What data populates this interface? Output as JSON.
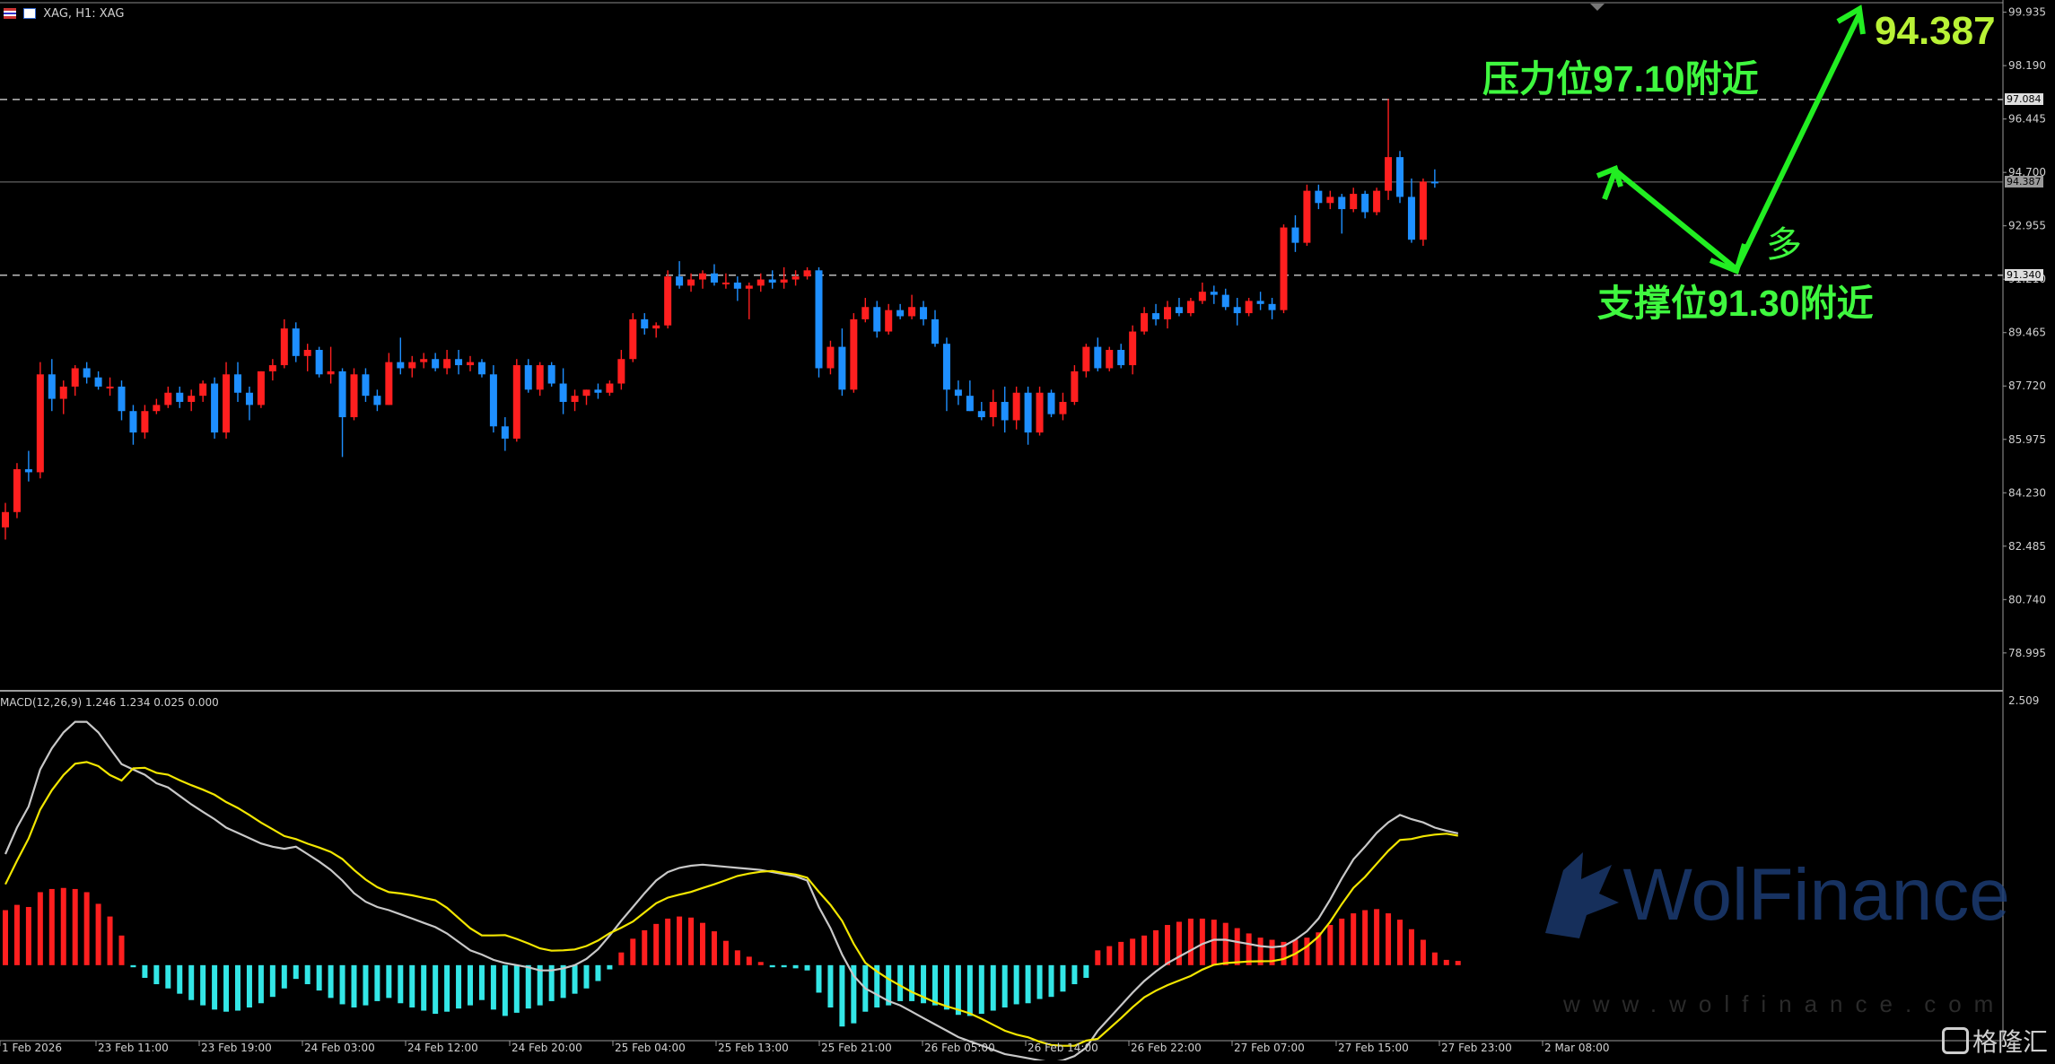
{
  "header": {
    "symbol_label": "XAG, H1: XAG"
  },
  "macd": {
    "label": "MACD(12,26,9) 1.246 1.234 0.025 0.000",
    "scale_top": "2.509"
  },
  "price_axis": {
    "ticks": [
      "99.935",
      "98.190",
      "96.445",
      "94.700",
      "92.955",
      "91.210",
      "89.465",
      "87.720",
      "85.975",
      "84.230",
      "82.485",
      "80.740",
      "78.995"
    ],
    "tags": {
      "resistance": "97.084",
      "current": "94.387",
      "support": "91.340"
    }
  },
  "time_axis": [
    "1 Feb 2026",
    "23 Feb 11:00",
    "23 Feb 19:00",
    "24 Feb 03:00",
    "24 Feb 12:00",
    "24 Feb 20:00",
    "25 Feb 04:00",
    "25 Feb 13:00",
    "25 Feb 21:00",
    "26 Feb 05:00",
    "26 Feb 14:00",
    "26 Feb 22:00",
    "27 Feb 07:00",
    "27 Feb 15:00",
    "27 Feb 23:00",
    "2 Mar 08:00"
  ],
  "annotations": {
    "resistance_prefix": "压力位",
    "resistance_value": "97.10",
    "resistance_suffix": "附近",
    "support_prefix": "支撑位",
    "support_value": "91.30",
    "support_suffix": "附近",
    "long_label": "多",
    "target_price": "94.387"
  },
  "watermark": {
    "brand": "WolFinance",
    "url": "www.wolfinance.com",
    "corner_logo": "格隆汇"
  },
  "colors": {
    "bull": "#ff1f1f",
    "bear": "#1e8fff",
    "hist_neg": "#33e6e6",
    "macd_line": "#c8c8c8",
    "signal_line": "#f2e600",
    "arrow": "#22ee22"
  },
  "chart_data": {
    "type": "candlestick",
    "candles": [
      [
        83.1,
        83.9,
        82.7,
        83.6
      ],
      [
        83.6,
        85.2,
        83.4,
        85.0
      ],
      [
        85.0,
        85.6,
        84.6,
        84.9
      ],
      [
        84.9,
        88.5,
        84.7,
        88.1
      ],
      [
        88.1,
        88.6,
        86.9,
        87.3
      ],
      [
        87.3,
        87.9,
        86.8,
        87.7
      ],
      [
        87.7,
        88.4,
        87.4,
        88.3
      ],
      [
        88.3,
        88.5,
        87.8,
        88.0
      ],
      [
        88.0,
        88.2,
        87.6,
        87.7
      ],
      [
        87.7,
        88.0,
        87.4,
        87.7
      ],
      [
        87.7,
        87.9,
        86.6,
        86.9
      ],
      [
        86.9,
        87.1,
        85.8,
        86.2
      ],
      [
        86.2,
        87.1,
        86.0,
        86.9
      ],
      [
        86.9,
        87.3,
        86.8,
        87.1
      ],
      [
        87.1,
        87.7,
        87.0,
        87.5
      ],
      [
        87.5,
        87.7,
        87.0,
        87.2
      ],
      [
        87.2,
        87.6,
        86.9,
        87.4
      ],
      [
        87.4,
        87.9,
        87.2,
        87.8
      ],
      [
        87.8,
        88.0,
        86.0,
        86.2
      ],
      [
        86.2,
        88.5,
        86.0,
        88.1
      ],
      [
        88.1,
        88.5,
        87.2,
        87.5
      ],
      [
        87.5,
        87.7,
        86.6,
        87.1
      ],
      [
        87.1,
        88.2,
        87.0,
        88.2
      ],
      [
        88.2,
        88.6,
        87.9,
        88.4
      ],
      [
        88.4,
        89.9,
        88.3,
        89.6
      ],
      [
        89.6,
        89.8,
        88.5,
        88.7
      ],
      [
        88.7,
        89.1,
        88.2,
        88.9
      ],
      [
        88.9,
        89.0,
        88.0,
        88.1
      ],
      [
        88.1,
        89.0,
        87.8,
        88.2
      ],
      [
        88.2,
        88.3,
        85.4,
        86.7
      ],
      [
        86.7,
        88.3,
        86.6,
        88.1
      ],
      [
        88.1,
        88.3,
        87.2,
        87.4
      ],
      [
        87.4,
        87.6,
        86.9,
        87.1
      ],
      [
        87.1,
        88.8,
        87.1,
        88.5
      ],
      [
        88.5,
        89.3,
        88.1,
        88.3
      ],
      [
        88.3,
        88.7,
        88.0,
        88.5
      ],
      [
        88.5,
        88.8,
        88.3,
        88.6
      ],
      [
        88.6,
        88.8,
        88.2,
        88.3
      ],
      [
        88.3,
        88.9,
        88.1,
        88.6
      ],
      [
        88.6,
        88.9,
        88.1,
        88.4
      ],
      [
        88.4,
        88.7,
        88.2,
        88.5
      ],
      [
        88.5,
        88.6,
        88.0,
        88.1
      ],
      [
        88.1,
        88.4,
        86.2,
        86.4
      ],
      [
        86.4,
        86.7,
        85.6,
        86.0
      ],
      [
        86.0,
        88.6,
        85.9,
        88.4
      ],
      [
        88.4,
        88.6,
        87.5,
        87.6
      ],
      [
        87.6,
        88.5,
        87.4,
        88.4
      ],
      [
        88.4,
        88.5,
        87.7,
        87.8
      ],
      [
        87.8,
        88.3,
        86.8,
        87.2
      ],
      [
        87.2,
        87.6,
        86.9,
        87.4
      ],
      [
        87.4,
        87.6,
        87.1,
        87.6
      ],
      [
        87.6,
        87.8,
        87.3,
        87.5
      ],
      [
        87.5,
        87.9,
        87.4,
        87.8
      ],
      [
        87.8,
        88.9,
        87.6,
        88.6
      ],
      [
        88.6,
        90.1,
        88.5,
        89.9
      ],
      [
        89.9,
        90.1,
        89.4,
        89.6
      ],
      [
        89.6,
        89.8,
        89.3,
        89.7
      ],
      [
        89.7,
        91.5,
        89.6,
        91.3
      ],
      [
        91.3,
        91.8,
        90.9,
        91.0
      ],
      [
        91.0,
        91.4,
        90.8,
        91.2
      ],
      [
        91.2,
        91.5,
        90.9,
        91.4
      ],
      [
        91.4,
        91.7,
        91.0,
        91.1
      ],
      [
        91.1,
        91.4,
        90.9,
        91.1
      ],
      [
        91.1,
        91.3,
        90.5,
        90.9
      ],
      [
        90.9,
        91.1,
        89.9,
        91.0
      ],
      [
        91.0,
        91.4,
        90.8,
        91.2
      ],
      [
        91.2,
        91.5,
        90.9,
        91.1
      ],
      [
        91.1,
        91.6,
        90.9,
        91.2
      ],
      [
        91.2,
        91.5,
        91.0,
        91.3
      ],
      [
        91.3,
        91.6,
        91.2,
        91.5
      ],
      [
        91.5,
        91.6,
        88.0,
        88.3
      ],
      [
        88.3,
        89.2,
        88.1,
        89.0
      ],
      [
        89.0,
        89.6,
        87.4,
        87.6
      ],
      [
        87.6,
        90.1,
        87.5,
        89.9
      ],
      [
        89.9,
        90.6,
        89.8,
        90.3
      ],
      [
        90.3,
        90.5,
        89.3,
        89.5
      ],
      [
        89.5,
        90.4,
        89.4,
        90.2
      ],
      [
        90.2,
        90.4,
        89.9,
        90.0
      ],
      [
        90.0,
        90.7,
        89.9,
        90.3
      ],
      [
        90.3,
        90.5,
        89.7,
        89.9
      ],
      [
        89.9,
        90.2,
        89.0,
        89.1
      ],
      [
        89.1,
        89.3,
        86.9,
        87.6
      ],
      [
        87.6,
        87.9,
        87.1,
        87.4
      ],
      [
        87.4,
        87.9,
        86.9,
        86.9
      ],
      [
        86.9,
        87.2,
        86.6,
        86.7
      ],
      [
        86.7,
        87.6,
        86.4,
        87.2
      ],
      [
        87.2,
        87.7,
        86.2,
        86.6
      ],
      [
        86.6,
        87.7,
        86.3,
        87.5
      ],
      [
        87.5,
        87.7,
        85.8,
        86.2
      ],
      [
        86.2,
        87.7,
        86.1,
        87.5
      ],
      [
        87.5,
        87.6,
        86.7,
        86.8
      ],
      [
        86.8,
        87.5,
        86.6,
        87.2
      ],
      [
        87.2,
        88.4,
        87.1,
        88.2
      ],
      [
        88.2,
        89.1,
        88.0,
        89.0
      ],
      [
        89.0,
        89.3,
        88.2,
        88.3
      ],
      [
        88.3,
        89.0,
        88.2,
        88.9
      ],
      [
        88.9,
        89.1,
        88.3,
        88.4
      ],
      [
        88.4,
        89.7,
        88.1,
        89.5
      ],
      [
        89.5,
        90.3,
        89.4,
        90.1
      ],
      [
        90.1,
        90.4,
        89.7,
        89.9
      ],
      [
        89.9,
        90.5,
        89.6,
        90.3
      ],
      [
        90.3,
        90.6,
        90.0,
        90.1
      ],
      [
        90.1,
        90.6,
        90.0,
        90.5
      ],
      [
        90.5,
        91.1,
        90.4,
        90.8
      ],
      [
        90.8,
        91.0,
        90.4,
        90.7
      ],
      [
        90.7,
        90.9,
        90.2,
        90.3
      ],
      [
        90.3,
        90.6,
        89.7,
        90.1
      ],
      [
        90.1,
        90.6,
        90.0,
        90.5
      ],
      [
        90.5,
        90.8,
        90.2,
        90.4
      ],
      [
        90.4,
        90.6,
        89.9,
        90.2
      ],
      [
        90.2,
        93.0,
        90.1,
        92.9
      ],
      [
        92.9,
        93.3,
        92.1,
        92.4
      ],
      [
        92.4,
        94.3,
        92.3,
        94.1
      ],
      [
        94.1,
        94.3,
        93.5,
        93.7
      ],
      [
        93.7,
        94.1,
        93.5,
        93.9
      ],
      [
        93.9,
        94.0,
        92.7,
        93.5
      ],
      [
        93.5,
        94.2,
        93.4,
        94.0
      ],
      [
        94.0,
        94.1,
        93.2,
        93.4
      ],
      [
        93.4,
        94.2,
        93.3,
        94.1
      ],
      [
        94.1,
        97.1,
        93.8,
        95.2
      ],
      [
        95.2,
        95.4,
        93.7,
        93.9
      ],
      [
        93.9,
        94.5,
        92.4,
        92.5
      ],
      [
        92.5,
        94.5,
        92.3,
        94.4
      ],
      [
        94.4,
        94.8,
        94.2,
        94.387
      ]
    ],
    "histogram": [
      0.52,
      0.57,
      0.55,
      0.69,
      0.72,
      0.73,
      0.72,
      0.69,
      0.58,
      0.46,
      0.28,
      -0.02,
      -0.12,
      -0.18,
      -0.22,
      -0.27,
      -0.33,
      -0.38,
      -0.42,
      -0.44,
      -0.43,
      -0.4,
      -0.36,
      -0.3,
      -0.22,
      -0.13,
      -0.18,
      -0.24,
      -0.31,
      -0.37,
      -0.4,
      -0.38,
      -0.34,
      -0.31,
      -0.36,
      -0.4,
      -0.43,
      -0.46,
      -0.44,
      -0.41,
      -0.38,
      -0.33,
      -0.42,
      -0.48,
      -0.45,
      -0.41,
      -0.38,
      -0.34,
      -0.31,
      -0.27,
      -0.22,
      -0.15,
      -0.04,
      0.12,
      0.25,
      0.33,
      0.39,
      0.44,
      0.46,
      0.45,
      0.4,
      0.32,
      0.23,
      0.14,
      0.08,
      0.03,
      -0.02,
      -0.02,
      -0.03,
      -0.05,
      -0.26,
      -0.4,
      -0.58,
      -0.55,
      -0.44,
      -0.4,
      -0.38,
      -0.34,
      -0.34,
      -0.36,
      -0.38,
      -0.42,
      -0.47,
      -0.48,
      -0.46,
      -0.43,
      -0.4,
      -0.37,
      -0.36,
      -0.32,
      -0.3,
      -0.25,
      -0.18,
      -0.12,
      0.14,
      0.18,
      0.22,
      0.25,
      0.28,
      0.33,
      0.38,
      0.41,
      0.44,
      0.44,
      0.43,
      0.4,
      0.35,
      0.3,
      0.26,
      0.24,
      0.22,
      0.24,
      0.26,
      0.31,
      0.38,
      0.44,
      0.49,
      0.52,
      0.53,
      0.49,
      0.43,
      0.34,
      0.24,
      0.12,
      0.05,
      0.04
    ],
    "macd_window": {
      "min": -0.68,
      "max": 2.509
    }
  }
}
